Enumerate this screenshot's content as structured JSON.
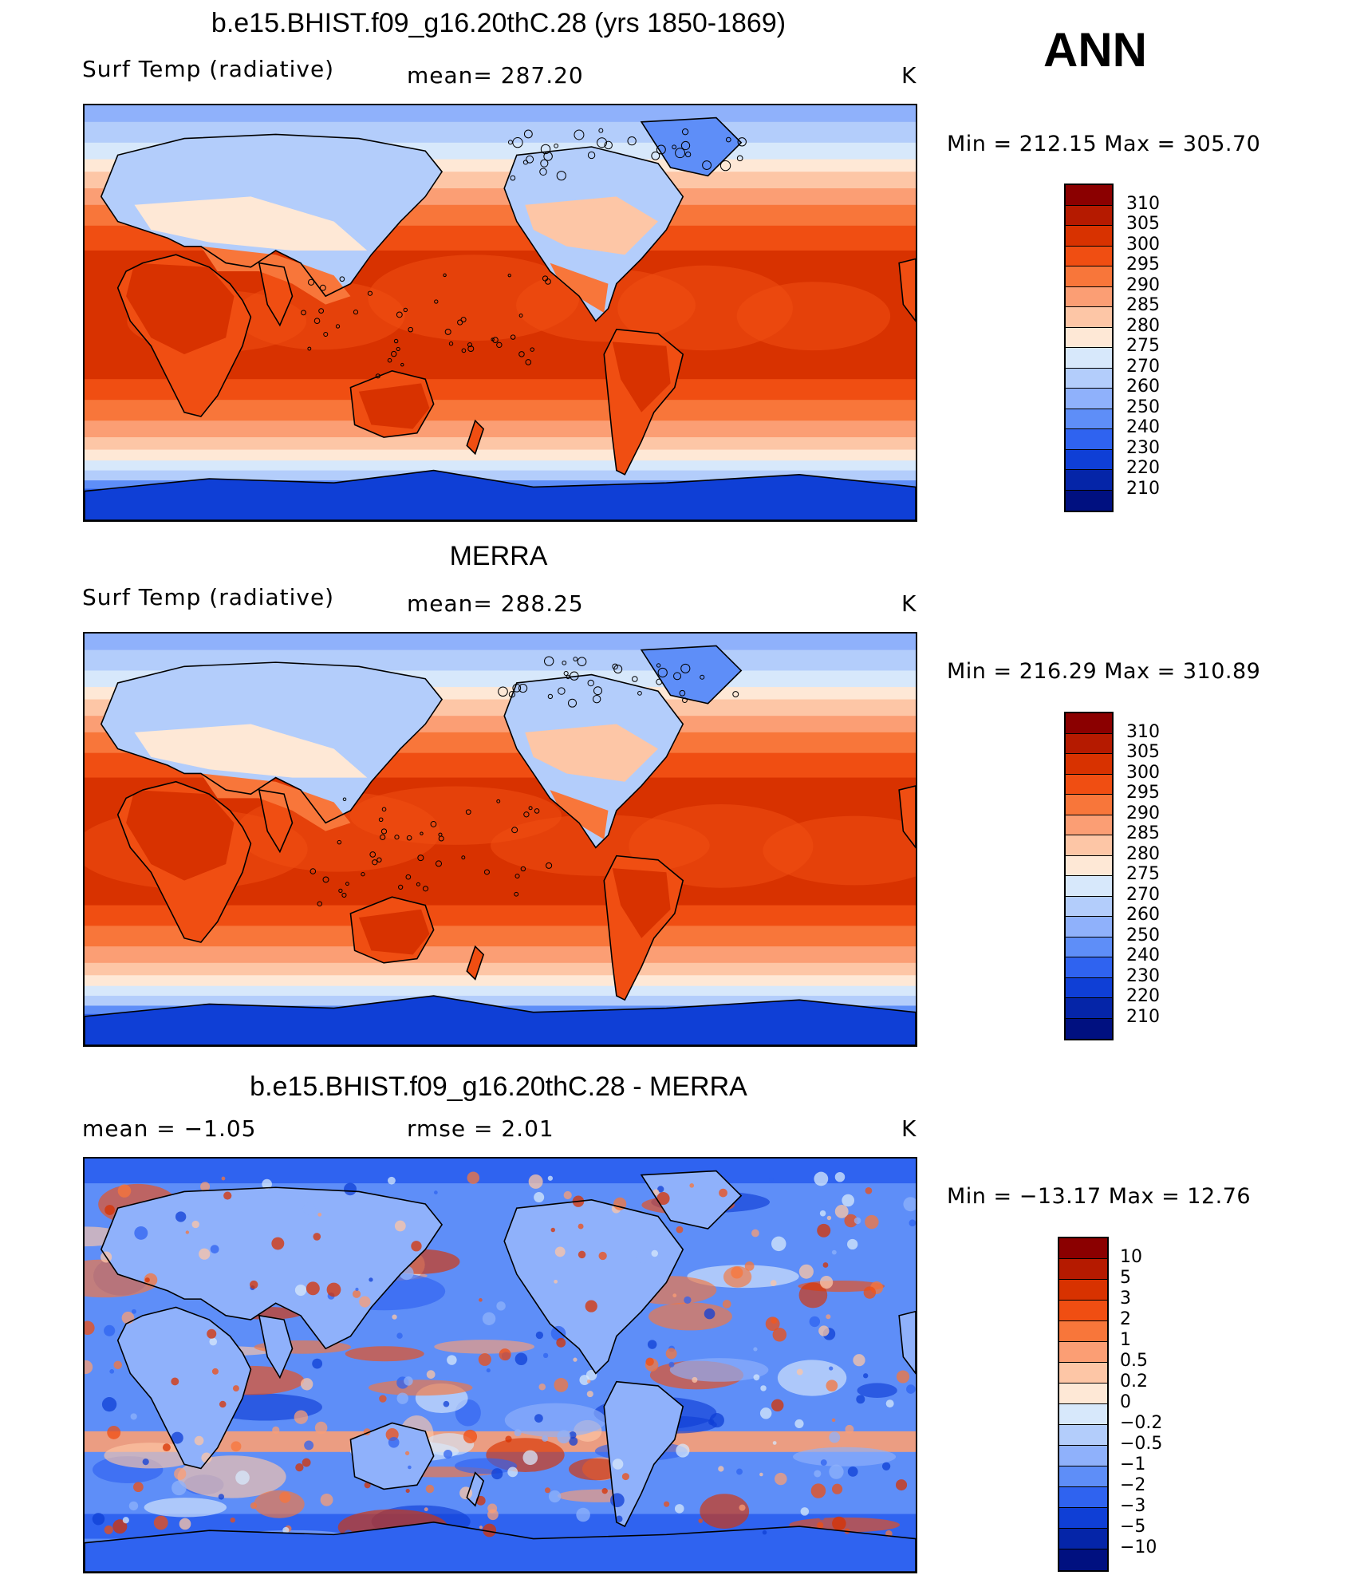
{
  "season": "ANN",
  "panels": [
    {
      "title": "b.e15.BHIST.f09_g16.20thC.28 (yrs 1850-1869)",
      "left_label": "Surf Temp (radiative)",
      "mid_label": "mean= 287.20",
      "units": "K",
      "minmax": "Min = 212.15 Max = 305.70",
      "colorbar": {
        "labels": [
          "310",
          "305",
          "300",
          "295",
          "290",
          "285",
          "280",
          "275",
          "270",
          "260",
          "250",
          "240",
          "230",
          "220",
          "210"
        ],
        "colors": [
          "#8b0000",
          "#b51a00",
          "#d83200",
          "#f04e12",
          "#f8763a",
          "#fb9e74",
          "#fdc6a6",
          "#fee8d6",
          "#d7e8fb",
          "#b3cdfb",
          "#8fb1fb",
          "#5e8ef8",
          "#2f63f0",
          "#0f3fd6",
          "#0525a8",
          "#001080"
        ]
      },
      "map": {
        "style": "temperature",
        "seed": 11
      }
    },
    {
      "title": "MERRA",
      "left_label": "Surf Temp (radiative)",
      "mid_label": "mean= 288.25",
      "units": "K",
      "minmax": "Min = 216.29 Max = 310.89",
      "colorbar": {
        "labels": [
          "310",
          "305",
          "300",
          "295",
          "290",
          "285",
          "280",
          "275",
          "270",
          "260",
          "250",
          "240",
          "230",
          "220",
          "210"
        ],
        "colors": [
          "#8b0000",
          "#b51a00",
          "#d83200",
          "#f04e12",
          "#f8763a",
          "#fb9e74",
          "#fdc6a6",
          "#fee8d6",
          "#d7e8fb",
          "#b3cdfb",
          "#8fb1fb",
          "#5e8ef8",
          "#2f63f0",
          "#0f3fd6",
          "#0525a8",
          "#001080"
        ]
      },
      "map": {
        "style": "temperature",
        "seed": 23
      }
    },
    {
      "title": "b.e15.BHIST.f09_g16.20thC.28 - MERRA",
      "left_label": "mean =   −1.05",
      "mid_label": "rmse =    2.01",
      "units": "K",
      "minmax": "Min = −13.17 Max =  12.76",
      "colorbar": {
        "labels": [
          "10",
          "5",
          "3",
          "2",
          "1",
          "0.5",
          "0.2",
          "0",
          "−0.2",
          "−0.5",
          "−1",
          "−2",
          "−3",
          "−5",
          "−10"
        ],
        "colors": [
          "#8b0000",
          "#b51a00",
          "#d83200",
          "#f04e12",
          "#f8763a",
          "#fb9e74",
          "#fdc6a6",
          "#fee8d6",
          "#d7e8fb",
          "#b3cdfb",
          "#8fb1fb",
          "#5e8ef8",
          "#2f63f0",
          "#0f3fd6",
          "#0525a8",
          "#001080"
        ]
      },
      "map": {
        "style": "difference",
        "seed": 37
      }
    }
  ]
}
